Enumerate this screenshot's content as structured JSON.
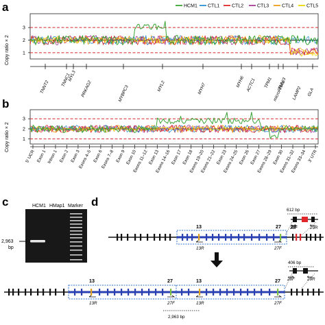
{
  "panels": {
    "a": "a",
    "b": "b",
    "c": "c",
    "d": "d"
  },
  "legend": [
    {
      "name": "HCM1",
      "color": "#3aa335"
    },
    {
      "name": "CTL1",
      "color": "#2a8fd0"
    },
    {
      "name": "CTL2",
      "color": "#e0262a"
    },
    {
      "name": "CTL3",
      "color": "#a43b9a"
    },
    {
      "name": "CTL4",
      "color": "#f39c12"
    },
    {
      "name": "CTL5",
      "color": "#f1d900"
    }
  ],
  "chart_data": [
    {
      "panel": "a",
      "type": "line",
      "ylabel": "Copy ratio × 2",
      "yticks": [
        1,
        2,
        3
      ],
      "ylim": [
        0.5,
        4.1
      ],
      "reference_lines": [
        1,
        2,
        3
      ],
      "xlabel": "",
      "series_names": [
        "HCM1",
        "CTL1",
        "CTL2",
        "CTL3",
        "CTL4",
        "CTL5"
      ],
      "categories": [
        "TNNT2",
        "TNNC1",
        "MYL3",
        "PRKAG2",
        "MYBPC3",
        "MYL2",
        "MYH7",
        "MYH6",
        "ACTC1",
        "TPM1",
        "microRNAs",
        "TNNI3",
        "LAMP2",
        "GLA"
      ],
      "gene_region_edges": [
        0,
        0.12,
        0.2,
        0.27,
        0.3,
        0.36,
        0.62,
        0.71,
        0.84,
        0.88,
        0.91,
        0.965,
        1.02,
        1.05,
        1.08,
        1.12
      ],
      "baseline_range": [
        1.6,
        2.4
      ],
      "features": [
        {
          "series": "HCM1",
          "region": "MYBPC3",
          "range": [
            0.36,
            0.47
          ],
          "copy_ratio": 3.0,
          "peak": 4.0
        },
        {
          "series": "CTL1",
          "region": "LAMP2-GLA",
          "range": [
            0.9,
            1.0
          ],
          "copy_ratio": 2.0
        },
        {
          "series": "CTL2",
          "region": "LAMP2-GLA",
          "range": [
            0.9,
            1.0
          ],
          "copy_ratio": 1.1
        },
        {
          "series": "CTL3",
          "region": "LAMP2-GLA",
          "range": [
            0.9,
            1.0
          ],
          "copy_ratio": 1.1
        },
        {
          "series": "CTL4",
          "region": "LAMP2-GLA",
          "range": [
            0.9,
            1.0
          ],
          "copy_ratio": 1.1
        },
        {
          "series": "CTL5",
          "region": "LAMP2-GLA",
          "range": [
            0.9,
            1.0
          ],
          "copy_ratio": 1.0
        }
      ]
    },
    {
      "panel": "b",
      "type": "line",
      "ylabel": "Copy ratio × 2",
      "yticks": [
        1,
        2,
        3
      ],
      "ylim": [
        0.5,
        3.9
      ],
      "reference_lines": [
        1,
        2,
        3
      ],
      "xlabel": "",
      "series_names": [
        "HCM1",
        "CTL1",
        "CTL2",
        "CTL3",
        "CTL4",
        "CTL5"
      ],
      "categories": [
        "5′ UCR",
        "Exon 1",
        "Intron 1",
        "Exon 2",
        "Exon 3",
        "Exons 4–5",
        "Exon 6",
        "Exons 7–8",
        "Exon 9",
        "Exon 10",
        "Exons 11–12",
        "Exon 13",
        "Exons 14–16",
        "Exon 17",
        "Exon 18",
        "Exons 19–20",
        "Exons 21–22",
        "Exon 23",
        "Exons 24–25",
        "Exon 26",
        "Exon 27",
        "Exons 28–29",
        "Exon 30",
        "Exons 31–32",
        "Exons 33–34",
        "3′ UTR"
      ],
      "baseline_range": [
        1.6,
        2.4
      ],
      "features": [
        {
          "series": "HCM1",
          "from_category": "Exon 13",
          "to_category": "Exon 27",
          "copy_ratio": 2.8,
          "peak": 3.4
        },
        {
          "series": "HCM1",
          "category": "Exon 28–30",
          "copy_ratio": 1.1
        }
      ]
    }
  ],
  "gel": {
    "lanes": [
      "HCM1",
      "HMap1",
      "Marker"
    ],
    "band_label": "2,963",
    "band_unit": "bp"
  },
  "diagram": {
    "exon_labels": [
      "13",
      "27",
      "29"
    ],
    "primers_top": [
      "13R",
      "27F",
      "28F",
      "29R"
    ],
    "primers_bottom": [
      "13R",
      "27F",
      "13R",
      "27F",
      "28F",
      "29R"
    ],
    "bottom_exons": [
      "13",
      "27",
      "13",
      "27"
    ],
    "product_sizes": [
      "612 bp",
      "406 bp",
      "2,963 bp"
    ]
  }
}
